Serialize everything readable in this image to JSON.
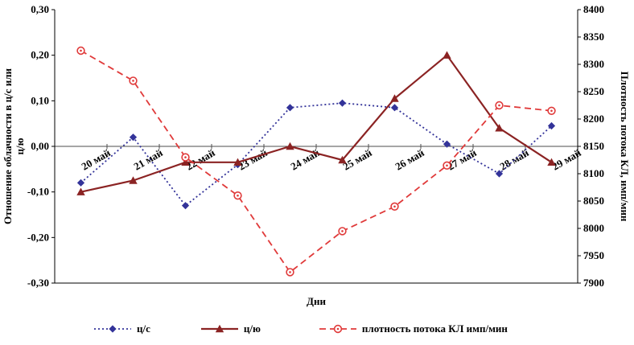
{
  "chart_data": {
    "type": "line",
    "title": "",
    "xlabel": "Дни",
    "categories": [
      "20 май",
      "21 май",
      "22 май",
      "23 май",
      "24 май",
      "25 май",
      "26 май",
      "27 май",
      "28 май",
      "29 май"
    ],
    "left_axis": {
      "label": "Отношение облачности в ц/с или ц/ю",
      "label_lines": [
        "Отношение облачности в ц/с или",
        "ц/ю"
      ],
      "min": -0.3,
      "max": 0.3,
      "step": 0.1,
      "tick_labels": [
        "0,30",
        "0,20",
        "0,10",
        "0,00",
        "-0,10",
        "-0,20",
        "-0,30"
      ]
    },
    "right_axis": {
      "label": "Плотность потока КЛ, имп/мин",
      "min": 7900,
      "max": 8400,
      "step": 50,
      "tick_labels": [
        "8400",
        "8350",
        "8300",
        "8250",
        "8200",
        "8150",
        "8100",
        "8050",
        "8000",
        "7950",
        "7900"
      ]
    },
    "grid": "zero-line-only",
    "legend_position": "bottom",
    "series": [
      {
        "name": "ц/с",
        "axis": "left",
        "color": "#333399",
        "line": "dotted",
        "marker": "diamond",
        "values": [
          -0.08,
          0.02,
          -0.13,
          -0.04,
          0.085,
          0.095,
          0.085,
          0.005,
          -0.06,
          0.045
        ]
      },
      {
        "name": "ц/ю",
        "axis": "left",
        "color": "#8b2323",
        "line": "solid",
        "marker": "triangle",
        "values": [
          -0.1,
          -0.075,
          -0.035,
          -0.035,
          0.0,
          -0.03,
          0.105,
          0.2,
          0.04,
          -0.035
        ]
      },
      {
        "name": "плотность потока КЛ имп/мин",
        "axis": "right",
        "color": "#e03a3a",
        "line": "dashed",
        "marker": "circle",
        "values": [
          8325,
          8270,
          8130,
          8060,
          7920,
          7995,
          8040,
          8115,
          8225,
          8215
        ]
      }
    ]
  }
}
